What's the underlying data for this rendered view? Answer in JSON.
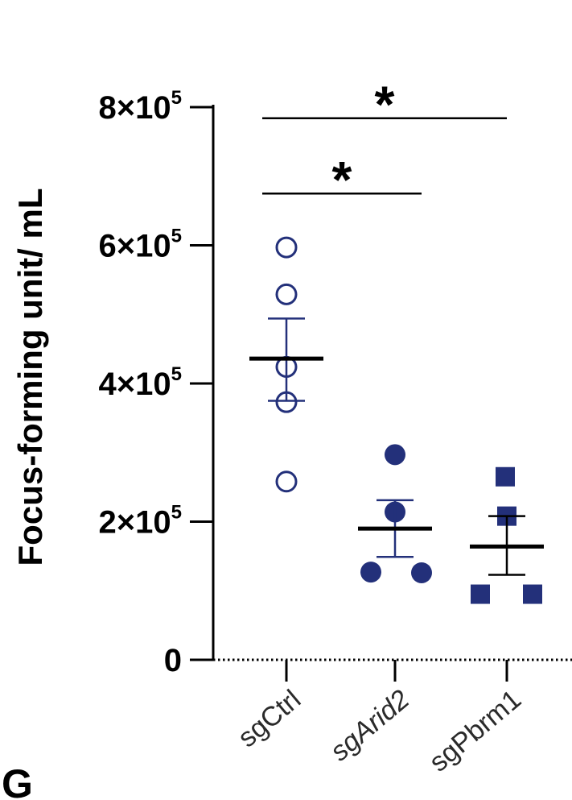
{
  "panel_label": "G",
  "chart_data": {
    "type": "scatter",
    "ylabel": "Focus-forming unit/ mL",
    "ylim": [
      0,
      800000
    ],
    "yticks": [
      {
        "value": 0,
        "base": "0",
        "exp": ""
      },
      {
        "value": 200000,
        "base": "2×10",
        "exp": "5"
      },
      {
        "value": 400000,
        "base": "4×10",
        "exp": "5"
      },
      {
        "value": 600000,
        "base": "6×10",
        "exp": "5"
      },
      {
        "value": 800000,
        "base": "8×10",
        "exp": "5"
      }
    ],
    "categories": [
      "sgCtrl",
      "sgArid2",
      "sgPbrm1"
    ],
    "series": [
      {
        "category": "sgCtrl",
        "marker": "circle-open",
        "color": "#23307a",
        "points": [
          597000,
          529000,
          424000,
          373000,
          258000
        ],
        "mean": 436000,
        "sem_upper": 494000,
        "sem_lower": 375000
      },
      {
        "category": "sgArid2",
        "marker": "circle-filled",
        "color": "#23307a",
        "points": [
          297000,
          214000,
          127000,
          126000
        ],
        "mean": 190000,
        "sem_upper": 231000,
        "sem_lower": 149000
      },
      {
        "category": "sgPbrm1",
        "marker": "square-filled",
        "color": "#23307a",
        "points": [
          265000,
          208000,
          95000,
          95000
        ],
        "mean": 164000,
        "sem_upper": 208000,
        "sem_lower": 123000
      }
    ],
    "significance": [
      {
        "from": "sgCtrl",
        "to": "sgArid2",
        "label": "*",
        "y": 675000
      },
      {
        "from": "sgCtrl",
        "to": "sgPbrm1",
        "label": "*",
        "y": 784000
      }
    ]
  }
}
